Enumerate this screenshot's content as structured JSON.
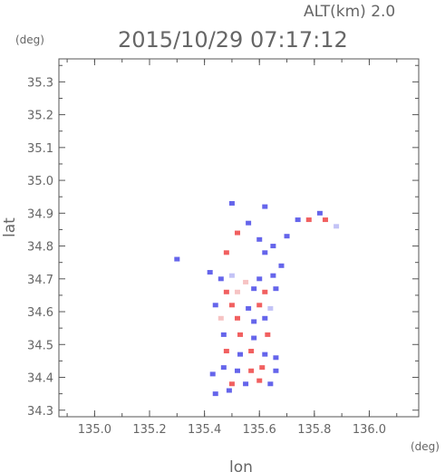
{
  "header": {
    "alt_label": "ALT(km) 2.0",
    "timestamp": "2015/10/29 07:17:12"
  },
  "colors": {
    "axis": "#555555",
    "text": "#666666",
    "positive": "#ee4444",
    "negative": "#4a4ae8",
    "pale_positive": "#f4b8b8",
    "pale_negative": "#b8b8f4"
  },
  "chart_data": {
    "type": "heatmap",
    "title": "2015/10/29 07:17:12",
    "subtitle": "ALT(km) 2.0",
    "xlabel": "lon",
    "ylabel": "lat",
    "x_unit": "(deg)",
    "y_unit": "(deg)",
    "xlim": [
      134.87,
      136.18
    ],
    "ylim": [
      34.28,
      35.37
    ],
    "x_ticks": [
      135.0,
      135.2,
      135.4,
      135.6,
      135.8,
      136.0
    ],
    "x_tick_labels": [
      "135.0",
      "135.2",
      "135.4",
      "135.6",
      "135.8",
      "136.0"
    ],
    "y_ticks": [
      34.3,
      34.4,
      34.5,
      34.6,
      34.7,
      34.8,
      34.9,
      35.0,
      35.1,
      35.2,
      35.3
    ],
    "y_tick_labels": [
      "34.3",
      "34.4",
      "34.5",
      "34.6",
      "34.7",
      "34.8",
      "34.9",
      "35.0",
      "35.1",
      "35.2",
      "35.3"
    ],
    "grid": false,
    "points": [
      {
        "lon": 135.3,
        "lat": 34.76,
        "v": -1
      },
      {
        "lon": 135.42,
        "lat": 34.72,
        "v": -1
      },
      {
        "lon": 135.46,
        "lat": 34.7,
        "v": -1
      },
      {
        "lon": 135.5,
        "lat": 34.71,
        "v": -0.5
      },
      {
        "lon": 135.55,
        "lat": 34.69,
        "v": 0.5
      },
      {
        "lon": 135.6,
        "lat": 34.7,
        "v": -1
      },
      {
        "lon": 135.65,
        "lat": 34.71,
        "v": -1
      },
      {
        "lon": 135.48,
        "lat": 34.66,
        "v": 1
      },
      {
        "lon": 135.52,
        "lat": 34.66,
        "v": 0.5
      },
      {
        "lon": 135.58,
        "lat": 34.67,
        "v": -1
      },
      {
        "lon": 135.62,
        "lat": 34.66,
        "v": 1
      },
      {
        "lon": 135.66,
        "lat": 34.67,
        "v": -1
      },
      {
        "lon": 135.44,
        "lat": 34.62,
        "v": -1
      },
      {
        "lon": 135.5,
        "lat": 34.62,
        "v": 1
      },
      {
        "lon": 135.56,
        "lat": 34.61,
        "v": -1
      },
      {
        "lon": 135.6,
        "lat": 34.62,
        "v": 1
      },
      {
        "lon": 135.64,
        "lat": 34.61,
        "v": -0.5
      },
      {
        "lon": 135.46,
        "lat": 34.58,
        "v": 0.5
      },
      {
        "lon": 135.52,
        "lat": 34.58,
        "v": 1
      },
      {
        "lon": 135.58,
        "lat": 34.57,
        "v": -1
      },
      {
        "lon": 135.62,
        "lat": 34.58,
        "v": -1
      },
      {
        "lon": 135.47,
        "lat": 34.53,
        "v": -1
      },
      {
        "lon": 135.53,
        "lat": 34.53,
        "v": 1
      },
      {
        "lon": 135.58,
        "lat": 34.52,
        "v": -1
      },
      {
        "lon": 135.63,
        "lat": 34.53,
        "v": 1
      },
      {
        "lon": 135.48,
        "lat": 34.48,
        "v": 1
      },
      {
        "lon": 135.53,
        "lat": 34.47,
        "v": -1
      },
      {
        "lon": 135.57,
        "lat": 34.48,
        "v": 1
      },
      {
        "lon": 135.62,
        "lat": 34.47,
        "v": -1
      },
      {
        "lon": 135.66,
        "lat": 34.46,
        "v": -1
      },
      {
        "lon": 135.47,
        "lat": 34.43,
        "v": -1
      },
      {
        "lon": 135.52,
        "lat": 34.42,
        "v": -1
      },
      {
        "lon": 135.57,
        "lat": 34.42,
        "v": 1
      },
      {
        "lon": 135.61,
        "lat": 34.43,
        "v": 1
      },
      {
        "lon": 135.66,
        "lat": 34.42,
        "v": -1
      },
      {
        "lon": 135.43,
        "lat": 34.41,
        "v": -1
      },
      {
        "lon": 135.5,
        "lat": 34.38,
        "v": 1
      },
      {
        "lon": 135.55,
        "lat": 34.38,
        "v": -1
      },
      {
        "lon": 135.6,
        "lat": 34.39,
        "v": 1
      },
      {
        "lon": 135.64,
        "lat": 34.38,
        "v": -1
      },
      {
        "lon": 135.44,
        "lat": 34.35,
        "v": -1
      },
      {
        "lon": 135.49,
        "lat": 34.36,
        "v": -1
      },
      {
        "lon": 135.52,
        "lat": 34.84,
        "v": 1
      },
      {
        "lon": 135.56,
        "lat": 34.87,
        "v": -1
      },
      {
        "lon": 135.6,
        "lat": 34.82,
        "v": -1
      },
      {
        "lon": 135.65,
        "lat": 34.8,
        "v": -1
      },
      {
        "lon": 135.7,
        "lat": 34.83,
        "v": -1
      },
      {
        "lon": 135.74,
        "lat": 34.88,
        "v": -1
      },
      {
        "lon": 135.78,
        "lat": 34.88,
        "v": 1
      },
      {
        "lon": 135.82,
        "lat": 34.9,
        "v": -1
      },
      {
        "lon": 135.84,
        "lat": 34.88,
        "v": 1
      },
      {
        "lon": 135.88,
        "lat": 34.86,
        "v": -0.5
      },
      {
        "lon": 135.5,
        "lat": 34.93,
        "v": -1
      },
      {
        "lon": 135.62,
        "lat": 34.92,
        "v": -1
      },
      {
        "lon": 135.68,
        "lat": 34.74,
        "v": -1
      },
      {
        "lon": 135.48,
        "lat": 34.78,
        "v": 1
      },
      {
        "lon": 135.62,
        "lat": 34.78,
        "v": -1
      }
    ]
  }
}
